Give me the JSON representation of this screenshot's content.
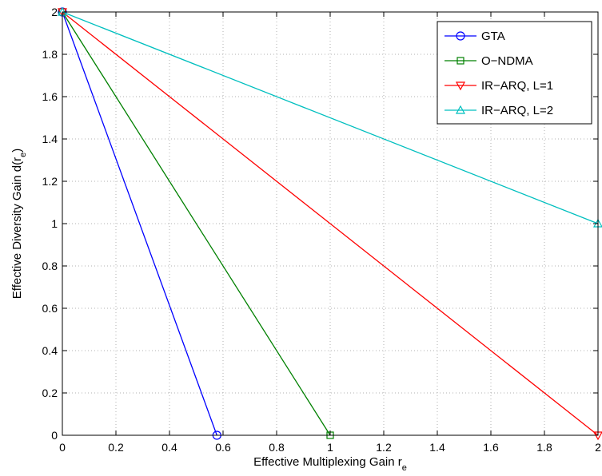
{
  "chart_data": {
    "type": "line",
    "title": "",
    "xlabel": "Effective Multiplexing Gain r",
    "xlabel_sub": "e",
    "ylabel": "Effective Diversity Gain d(r",
    "ylabel_sub": "e",
    "ylabel_close": ")",
    "xlim": [
      0,
      2
    ],
    "ylim": [
      0,
      2
    ],
    "xticks": [
      0,
      0.2,
      0.4,
      0.6,
      0.8,
      1,
      1.2,
      1.4,
      1.6,
      1.8,
      2
    ],
    "yticks": [
      0,
      0.2,
      0.4,
      0.6,
      0.8,
      1,
      1.2,
      1.4,
      1.6,
      1.8,
      2
    ],
    "xtick_labels": [
      "0",
      "0.2",
      "0.4",
      "0.6",
      "0.8",
      "1",
      "1.2",
      "1.4",
      "1.6",
      "1.8",
      "2"
    ],
    "ytick_labels": [
      "0",
      "0.2",
      "0.4",
      "0.6",
      "0.8",
      "1",
      "1.2",
      "1.4",
      "1.6",
      "1.8",
      "2"
    ],
    "grid": true,
    "legend_position": "top-right",
    "series": [
      {
        "name": "GTA",
        "color": "#0000ff",
        "marker": "circle",
        "x": [
          0,
          0.577
        ],
        "y": [
          2,
          0
        ]
      },
      {
        "name": "O−NDMA",
        "color": "#008000",
        "marker": "square",
        "x": [
          0,
          1
        ],
        "y": [
          2,
          0
        ]
      },
      {
        "name": "IR−ARQ, L=1",
        "color": "#ff0000",
        "marker": "triangle-down",
        "x": [
          0,
          2
        ],
        "y": [
          2,
          0
        ]
      },
      {
        "name": "IR−ARQ, L=2",
        "color": "#00bfbf",
        "marker": "triangle-up",
        "x": [
          0,
          2
        ],
        "y": [
          2,
          1
        ]
      }
    ]
  }
}
